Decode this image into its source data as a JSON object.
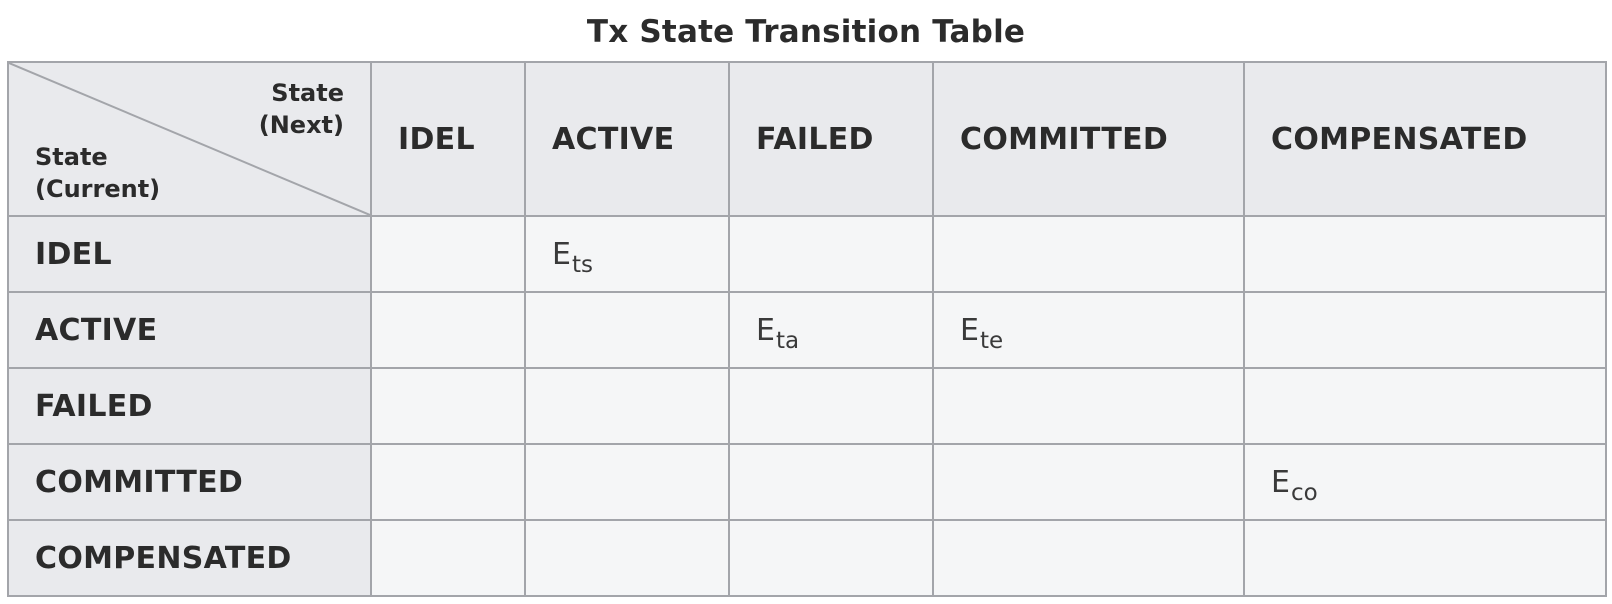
{
  "title": "Tx State Transition Table",
  "corner": {
    "next_line1": "State",
    "next_line2": "(Next)",
    "current_line1": "State",
    "current_line2": "(Current)"
  },
  "columns": [
    "IDEL",
    "ACTIVE",
    "FAILED",
    "COMMITTED",
    "COMPENSATED"
  ],
  "rows": [
    {
      "state": "IDEL",
      "cells": [
        {
          "base": "",
          "sub": ""
        },
        {
          "base": "E",
          "sub": "ts"
        },
        {
          "base": "",
          "sub": ""
        },
        {
          "base": "",
          "sub": ""
        },
        {
          "base": "",
          "sub": ""
        }
      ]
    },
    {
      "state": "ACTIVE",
      "cells": [
        {
          "base": "",
          "sub": ""
        },
        {
          "base": "",
          "sub": ""
        },
        {
          "base": "E",
          "sub": "ta"
        },
        {
          "base": "E",
          "sub": "te"
        },
        {
          "base": "",
          "sub": ""
        }
      ]
    },
    {
      "state": "FAILED",
      "cells": [
        {
          "base": "",
          "sub": ""
        },
        {
          "base": "",
          "sub": ""
        },
        {
          "base": "",
          "sub": ""
        },
        {
          "base": "",
          "sub": ""
        },
        {
          "base": "",
          "sub": ""
        }
      ]
    },
    {
      "state": "COMMITTED",
      "cells": [
        {
          "base": "",
          "sub": ""
        },
        {
          "base": "",
          "sub": ""
        },
        {
          "base": "",
          "sub": ""
        },
        {
          "base": "",
          "sub": ""
        },
        {
          "base": "E",
          "sub": "co"
        }
      ]
    },
    {
      "state": "COMPENSATED",
      "cells": [
        {
          "base": "",
          "sub": ""
        },
        {
          "base": "",
          "sub": ""
        },
        {
          "base": "",
          "sub": ""
        },
        {
          "base": "",
          "sub": ""
        },
        {
          "base": "",
          "sub": ""
        }
      ]
    }
  ],
  "colors": {
    "header_bg": "#e9eaed",
    "cell_bg": "#f5f6f7",
    "border": "#a3a5aa",
    "text": "#2b2b2b"
  }
}
